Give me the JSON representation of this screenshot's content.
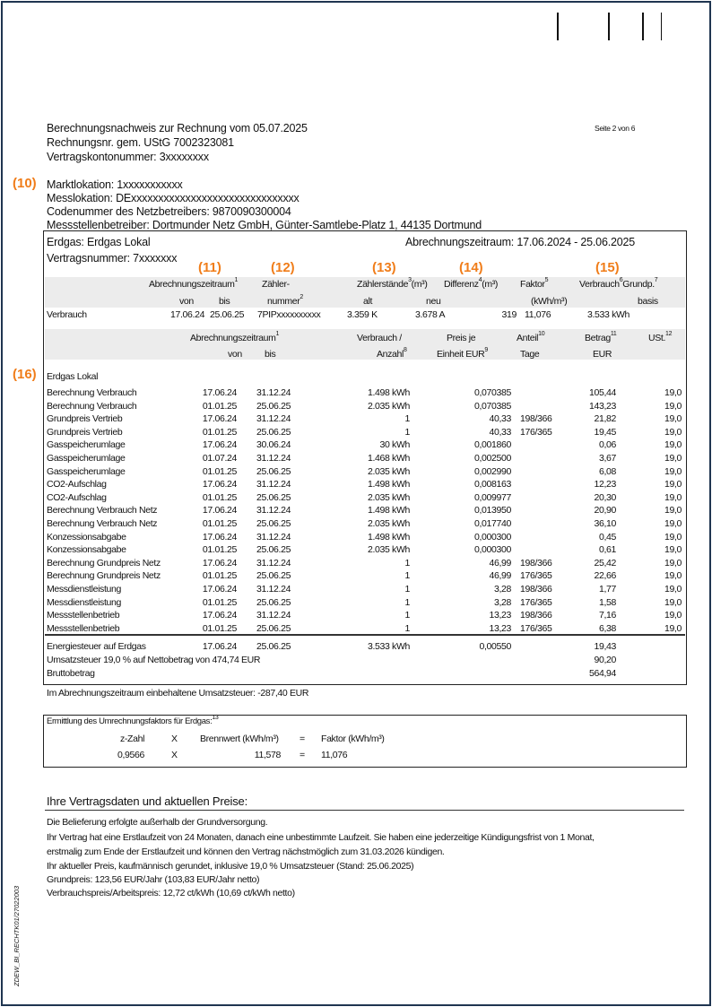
{
  "header": {
    "title": "Berechnungsnachweis zur Rechnung vom 05.07.2025",
    "rechnungsnr": "Rechnungsnr. gem. UStG   7002323081",
    "vertragskonto": "Vertragskontonummer: 3xxxxxxxx",
    "page": "Seite 2 von 6"
  },
  "markers": {
    "m10": "(10)",
    "m11": "(11)",
    "m12": "(12)",
    "m13": "(13)",
    "m14": "(14)",
    "m15": "(15)",
    "m16": "(16)"
  },
  "locations": {
    "markt": "Marktlokation: 1xxxxxxxxxxx",
    "mess": "Messlokation: DExxxxxxxxxxxxxxxxxxxxxxxxxxxxxxx",
    "code": "Codenummer des Netzbetreibers: 9870090300004",
    "betreiber": "Messstellenbetreiber: Dortmunder Netz GmbH, Günter-Samtlebe-Platz 1, 44135 Dortmund"
  },
  "contract": {
    "product": "Erdgas: Erdgas Lokal",
    "period": "Abrechnungszeitraum: 17.06.2024 - 25.06.2025",
    "vertragsnummer": "Vertragsnummer: 7xxxxxxx"
  },
  "meter_header": {
    "zeitraum": "Abrechnungszeitraum",
    "zaehler": "Zähler-",
    "staende": "Zählerstände",
    "staende_unit": "(m³)",
    "differenz": "Differenz",
    "differenz_unit": "(m³)",
    "faktor": "Faktor",
    "verbrauch": "Verbrauch",
    "grundp": "Grundp.",
    "von": "von",
    "bis": "bis",
    "nummer": "nummer",
    "alt": "alt",
    "neu": "neu",
    "faktor_unit": "(kWh/m³)",
    "basis": "basis",
    "sup1": "1",
    "sup2": "2",
    "sup3": "3",
    "sup4": "4",
    "sup5": "5",
    "sup6": "6",
    "sup7": "7"
  },
  "meter_row": {
    "label": "Verbrauch",
    "von": "17.06.24",
    "bis": "25.06.25",
    "nummer": "7PIPxxxxxxxxxx",
    "alt": "3.359 K",
    "neu": "3.678 A",
    "differenz": "319",
    "faktor": "11,076",
    "verbrauch": "3.533 kWh"
  },
  "items_header": {
    "zeitraum": "Abrechnungszeitraum",
    "sup_zeitraum": "1",
    "von": "von",
    "bis": "bis",
    "verbrauch": "Verbrauch /",
    "anzahl": "Anzahl",
    "sup_anzahl": "8",
    "preis": "Preis je",
    "einheit": "Einheit EUR",
    "sup_einheit": "9",
    "anteil": "Anteil",
    "sup_anteil": "10",
    "tage": "Tage",
    "betrag": "Betrag",
    "sup_betrag": "11",
    "eur": "EUR",
    "ust": "USt.",
    "sup_ust": "12"
  },
  "section": "Erdgas Lokal",
  "items": [
    [
      "Berechnung  Verbrauch",
      "17.06.24",
      "31.12.24",
      "1.498 kWh",
      "0,070385",
      "",
      "105,44",
      "19,0"
    ],
    [
      "Berechnung  Verbrauch",
      "01.01.25",
      "25.06.25",
      "2.035 kWh",
      "0,070385",
      "",
      "143,23",
      "19,0"
    ],
    [
      "Grundpreis Vertrieb",
      "17.06.24",
      "31.12.24",
      "1",
      "40,33",
      "198/366",
      "21,82",
      "19,0"
    ],
    [
      "Grundpreis Vertrieb",
      "01.01.25",
      "25.06.25",
      "1",
      "40,33",
      "176/365",
      "19,45",
      "19,0"
    ],
    [
      "Gasspeicherumlage",
      "17.06.24",
      "30.06.24",
      "30 kWh",
      "0,001860",
      "",
      "0,06",
      "19,0"
    ],
    [
      "Gasspeicherumlage",
      "01.07.24",
      "31.12.24",
      "1.468 kWh",
      "0,002500",
      "",
      "3,67",
      "19,0"
    ],
    [
      "Gasspeicherumlage",
      "01.01.25",
      "25.06.25",
      "2.035 kWh",
      "0,002990",
      "",
      "6,08",
      "19,0"
    ],
    [
      "CO2-Aufschlag",
      "17.06.24",
      "31.12.24",
      "1.498 kWh",
      "0,008163",
      "",
      "12,23",
      "19,0"
    ],
    [
      "CO2-Aufschlag",
      "01.01.25",
      "25.06.25",
      "2.035 kWh",
      "0,009977",
      "",
      "20,30",
      "19,0"
    ],
    [
      "Berechnung  Verbrauch Netz",
      "17.06.24",
      "31.12.24",
      "1.498 kWh",
      "0,013950",
      "",
      "20,90",
      "19,0"
    ],
    [
      "Berechnung  Verbrauch Netz",
      "01.01.25",
      "25.06.25",
      "2.035 kWh",
      "0,017740",
      "",
      "36,10",
      "19,0"
    ],
    [
      "Konzessionsabgabe",
      "17.06.24",
      "31.12.24",
      "1.498 kWh",
      "0,000300",
      "",
      "0,45",
      "19,0"
    ],
    [
      "Konzessionsabgabe",
      "01.01.25",
      "25.06.25",
      "2.035 kWh",
      "0,000300",
      "",
      "0,61",
      "19,0"
    ],
    [
      "Berechnung Grundpreis Netz",
      "17.06.24",
      "31.12.24",
      "1",
      "46,99",
      "198/366",
      "25,42",
      "19,0"
    ],
    [
      "Berechnung Grundpreis Netz",
      "01.01.25",
      "25.06.25",
      "1",
      "46,99",
      "176/365",
      "22,66",
      "19,0"
    ],
    [
      "Messdienstleistung",
      "17.06.24",
      "31.12.24",
      "1",
      "3,28",
      "198/366",
      "1,77",
      "19,0"
    ],
    [
      "Messdienstleistung",
      "01.01.25",
      "25.06.25",
      "1",
      "3,28",
      "176/365",
      "1,58",
      "19,0"
    ],
    [
      "Messstellenbetrieb",
      "17.06.24",
      "31.12.24",
      "1",
      "13,23",
      "198/366",
      "7,16",
      "19,0"
    ],
    [
      "Messstellenbetrieb",
      "01.01.25",
      "25.06.25",
      "1",
      "13,23",
      "176/365",
      "6,38",
      "19,0"
    ]
  ],
  "totals": {
    "energiesteuer": [
      "Energiesteuer auf Erdgas",
      "17.06.24",
      "25.06.25",
      "3.533 kWh",
      "0,00550",
      "",
      "19,43",
      ""
    ],
    "umsatz_label": "Umsatzsteuer 19,0 % auf Nettobetrag von 474,74 EUR",
    "umsatz_value": "90,20",
    "brutto_label": "Bruttobetrag",
    "brutto_value": "564,94"
  },
  "withheld": "Im Abrechnungszeitraum einbehaltene Umsatzsteuer: -287,40 EUR",
  "factor": {
    "title": "Ermittlung des Umrechnungsfaktors für Erdgas:",
    "sup": "13",
    "zlabel": "z-Zahl",
    "x": "X",
    "blabel": "Brennwert (kWh/m³)",
    "eq": "=",
    "flabel": "Faktor (kWh/m³)",
    "z": "0,9566",
    "b": "11,578",
    "f": "11,076"
  },
  "contract_info": {
    "heading": "Ihre Vertragsdaten und aktuellen Preise:",
    "lines": [
      "Die Belieferung erfolgte außerhalb der Grundversorgung.",
      "Ihr Vertrag hat eine Erstlaufzeit von 24 Monaten, danach eine unbestimmte Laufzeit. Sie haben eine jederzeitige Kündigungsfrist von 1 Monat,",
      "erstmalig zum Ende der Erstlaufzeit und können den Vertrag nächstmöglich zum 31.03.2026 kündigen.",
      "Ihr aktueller Preis, kaufmännisch gerundet, inklusive 19,0 % Umsatzsteuer (Stand: 25.06.2025)",
      "Grundpreis: 123,56 EUR/Jahr (103,83 EUR/Jahr netto)",
      "Verbrauchspreis/Arbeitspreis: 12,72 ct/kWh (10,69 ct/kWh netto)"
    ]
  },
  "side_code": "ZDEW_BI_RECHTK01/27022003",
  "colors": {
    "accent": "#f07d1a",
    "border": "#1f3550",
    "band": "#ececec"
  }
}
